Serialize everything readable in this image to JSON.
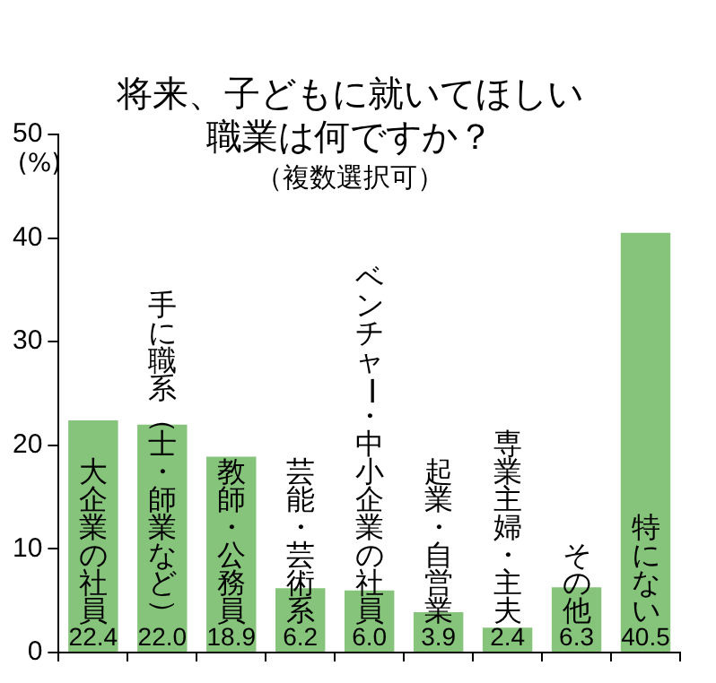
{
  "chart_data": {
    "type": "bar",
    "title": "将来、子どもに就いてほしい職業は何ですか？",
    "subtitle": "（複数選択可）",
    "ylabel": "(%)",
    "categories": [
      "大企業の社員",
      "手に職系（士・師業など）",
      "教師・公務員",
      "芸能・芸術系",
      "ベンチャー・中小企業の社員",
      "起業・自営業",
      "専業主婦・主夫",
      "その他",
      "特にない"
    ],
    "values": [
      22.4,
      22.0,
      18.9,
      6.2,
      6.0,
      3.9,
      2.4,
      6.3,
      40.5
    ],
    "value_labels": [
      "22.4",
      "22.0",
      "18.9",
      "6.2",
      "6.0",
      "3.9",
      "2.4",
      "6.3",
      "40.5"
    ],
    "color": "#85c47a",
    "ylim": [
      0,
      50
    ],
    "yticks": [
      0,
      10,
      20,
      30,
      40,
      50
    ],
    "grid": false,
    "legend": false
  }
}
